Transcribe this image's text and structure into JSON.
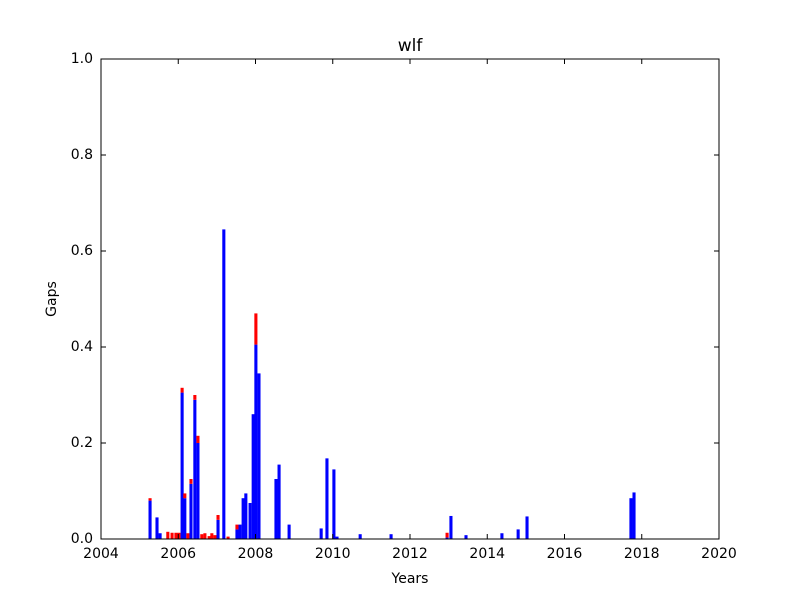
{
  "chart_data": {
    "type": "stacked_bar",
    "title": "wlf",
    "x_label": "Years",
    "y_label": "Gaps",
    "x": [
      2005.27,
      2005.45,
      2005.53,
      2005.73,
      2005.84,
      2005.94,
      2006.02,
      2006.1,
      2006.17,
      2006.25,
      2006.33,
      2006.43,
      2006.51,
      2006.61,
      2006.69,
      2006.8,
      2006.87,
      2006.95,
      2007.03,
      2007.18,
      2007.29,
      2007.52,
      2007.6,
      2007.68,
      2007.75,
      2007.86,
      2007.94,
      2008.01,
      2008.09,
      2008.53,
      2008.61,
      2008.87,
      2009.7,
      2009.85,
      2010.03,
      2010.11,
      2010.71,
      2011.51,
      2012.96,
      2013.06,
      2013.45,
      2014.38,
      2014.8,
      2015.03,
      2017.72,
      2017.8
    ],
    "series": [
      {
        "color": "#0000ff",
        "values": [
          0.08,
          0.045,
          0.012,
          0,
          0,
          0,
          0,
          0.305,
          0.085,
          0,
          0.115,
          0.29,
          0.2,
          0,
          0,
          0,
          0,
          0,
          0.04,
          0.645,
          0,
          0.02,
          0.03,
          0.085,
          0.095,
          0.075,
          0.26,
          0.405,
          0.345,
          0.125,
          0.155,
          0.03,
          0.022,
          0.168,
          0.145,
          0.005,
          0.01,
          0.01,
          0.003,
          0.048,
          0.008,
          0.012,
          0.02,
          0.047,
          0.085,
          0.097
        ]
      },
      {
        "color": "#ff0000",
        "values": [
          0.005,
          0,
          0,
          0.015,
          0.013,
          0.013,
          0.013,
          0.01,
          0.01,
          0.012,
          0.01,
          0.01,
          0.015,
          0.01,
          0.012,
          0.006,
          0.012,
          0.008,
          0.01,
          0,
          0.005,
          0.01,
          0,
          0,
          0,
          0,
          0,
          0.065,
          0,
          0,
          0,
          0,
          0,
          0,
          0,
          0,
          0,
          0,
          0.01,
          0,
          0,
          0,
          0,
          0,
          0,
          0
        ]
      }
    ],
    "xlim": [
      2004,
      2020
    ],
    "xticks": [
      2004,
      2006,
      2008,
      2010,
      2012,
      2014,
      2016,
      2018,
      2020
    ],
    "ylim": [
      0,
      1
    ],
    "yticks": [
      {
        "value": 0,
        "label": "0.0"
      },
      0.2,
      0.4,
      0.6,
      0.8,
      {
        "value": 1,
        "label": "1.0"
      }
    ]
  }
}
